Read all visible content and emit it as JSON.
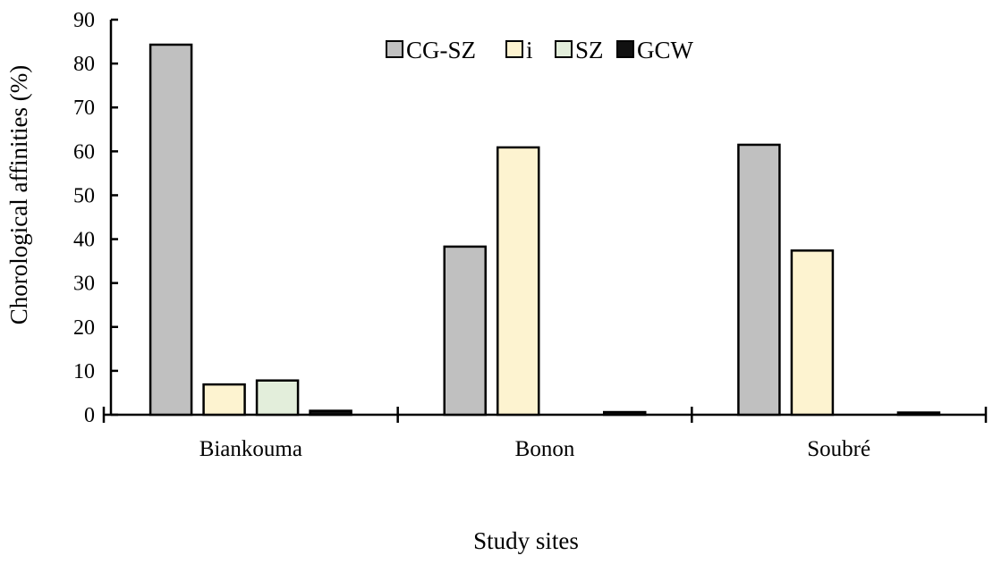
{
  "chart_data": {
    "type": "bar",
    "title": "",
    "xlabel": "Study sites",
    "ylabel": "Chorological affinities (%)",
    "ylim": [
      0,
      90
    ],
    "yticks": [
      0,
      10,
      20,
      30,
      40,
      50,
      60,
      70,
      80,
      90
    ],
    "grid": false,
    "legend_position": "top-center",
    "categories": [
      "Biankouma",
      "Bonon",
      "Soubré"
    ],
    "series": [
      {
        "name": "CG-SZ",
        "color": "#c0c0c0",
        "values": [
          84.3,
          38.3,
          61.5
        ]
      },
      {
        "name": "i",
        "color": "#fdf3d0",
        "values": [
          6.9,
          60.9,
          37.4
        ]
      },
      {
        "name": "SZ",
        "color": "#e3eedb",
        "values": [
          7.8,
          0,
          0
        ]
      },
      {
        "name": "GCW",
        "color": "#111111",
        "values": [
          0.9,
          0.6,
          0.5
        ]
      }
    ]
  }
}
